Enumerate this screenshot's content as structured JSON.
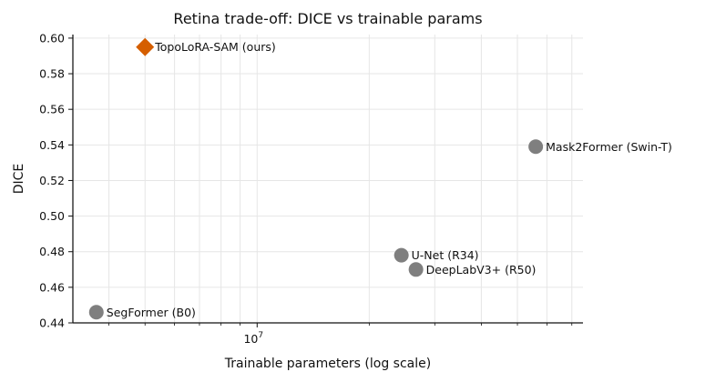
{
  "chart_data": {
    "type": "scatter",
    "title": "Retina trade-off: DICE vs trainable params",
    "xlabel": "Trainable parameters (log scale)",
    "ylabel": "DICE",
    "x_scale": "log",
    "xlim": [
      3200000,
      75000000
    ],
    "ylim": [
      0.44,
      0.602
    ],
    "y_ticks": [
      0.44,
      0.46,
      0.48,
      0.5,
      0.52,
      0.54,
      0.56,
      0.58,
      0.6
    ],
    "y_tick_labels": [
      "0.44",
      "0.46",
      "0.48",
      "0.50",
      "0.52",
      "0.54",
      "0.56",
      "0.58",
      "0.60"
    ],
    "x_major_ticks": [
      10000000
    ],
    "x_major_tick_base": "10",
    "x_major_tick_exponent": "7",
    "x_minor_ticks": [
      4000000,
      5000000,
      6000000,
      7000000,
      8000000,
      9000000,
      20000000,
      30000000,
      40000000,
      50000000,
      60000000,
      70000000
    ],
    "grid": true,
    "points": [
      {
        "label": "TopoLoRA-SAM (ours)",
        "x": 5000000,
        "y": 0.595,
        "marker": "diamond",
        "color": "#d55e00"
      },
      {
        "label": "Mask2Former (Swin-T)",
        "x": 56000000,
        "y": 0.539,
        "marker": "circle",
        "color": "#7f7f7f"
      },
      {
        "label": "U-Net (R34)",
        "x": 24400000,
        "y": 0.478,
        "marker": "circle",
        "color": "#7f7f7f"
      },
      {
        "label": "DeepLabV3+ (R50)",
        "x": 26700000,
        "y": 0.47,
        "marker": "circle",
        "color": "#7f7f7f"
      },
      {
        "label": "SegFormer (B0)",
        "x": 3700000,
        "y": 0.446,
        "marker": "circle",
        "color": "#7f7f7f"
      }
    ]
  }
}
